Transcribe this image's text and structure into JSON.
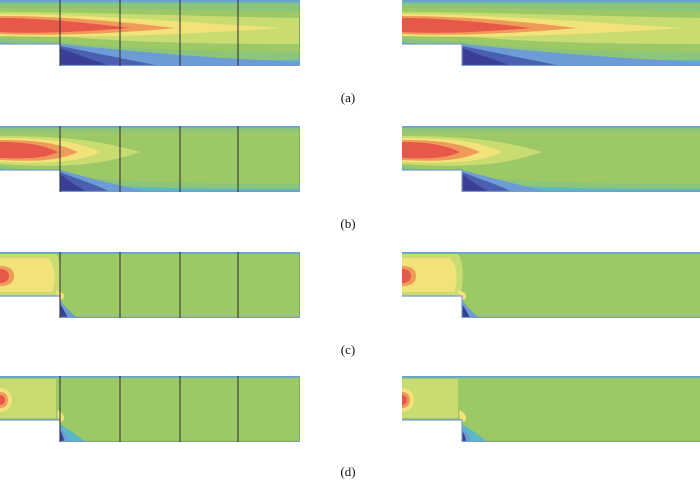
{
  "figure": {
    "captions": [
      "(a)",
      "(b)",
      "(c)",
      "(d)"
    ],
    "rows": [
      {
        "id": "a",
        "variant": "jet-long"
      },
      {
        "id": "b",
        "variant": "jet-short"
      },
      {
        "id": "c",
        "variant": "inlet-blob"
      },
      {
        "id": "d",
        "variant": "inlet-small"
      }
    ],
    "colors": {
      "red": "#e8584a",
      "orange": "#f09a5a",
      "yellow": "#f2e27a",
      "yellow-green": "#c9dc72",
      "green": "#9cc966",
      "light-green": "#8cc47a",
      "cyan": "#5bb8c6",
      "light-blue": "#6d9bd6",
      "blue": "#4a5fb0",
      "dark-blue": "#3a3f95",
      "mesh-line": "#2b2b2b",
      "wall": "#7a9bc8"
    }
  }
}
